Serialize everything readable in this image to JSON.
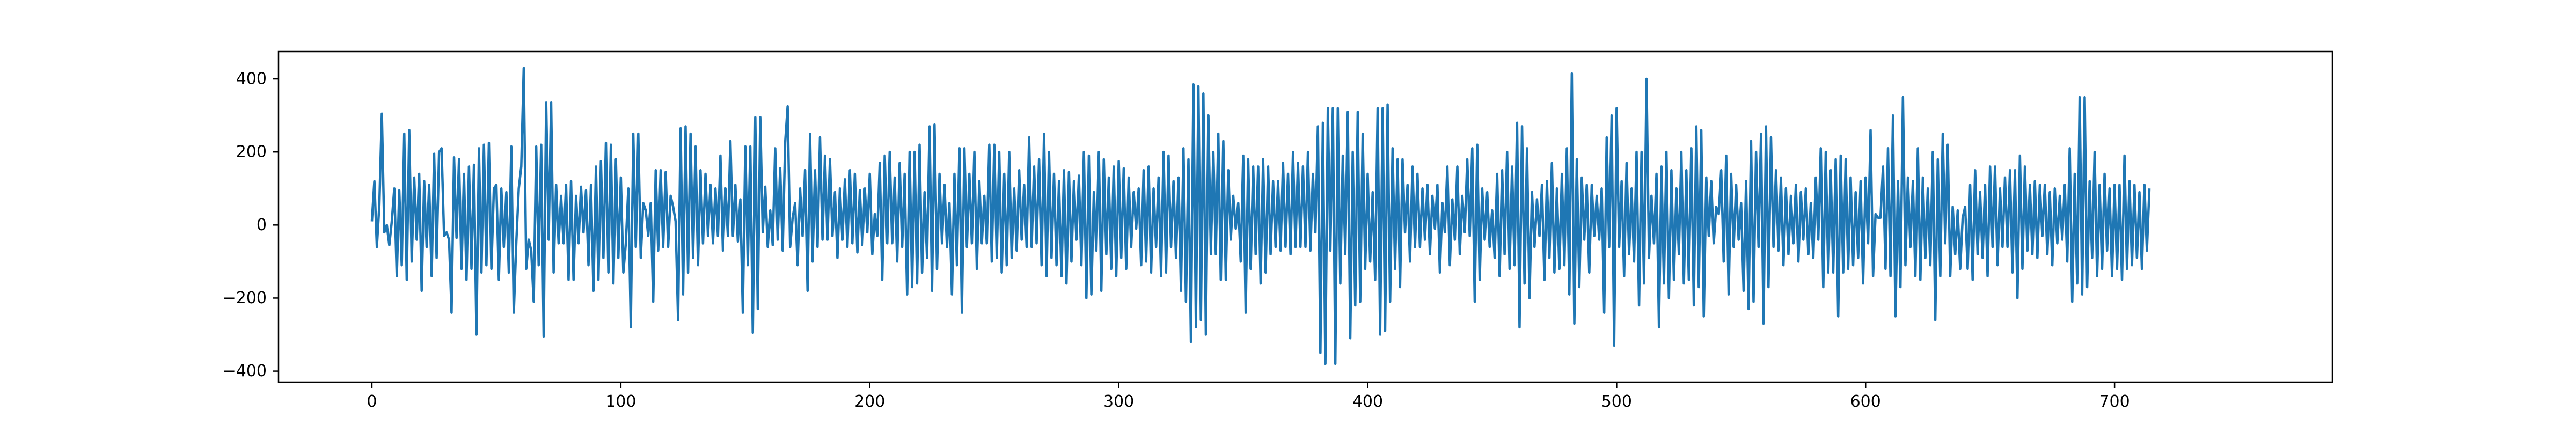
{
  "chart_data": {
    "type": "line",
    "title": "",
    "xlabel": "",
    "ylabel": "",
    "xlim": [
      -37.5,
      787.5
    ],
    "ylim": [
      -430,
      475
    ],
    "x_ticks": [
      0,
      100,
      200,
      300,
      400,
      500,
      600,
      700
    ],
    "y_ticks": [
      -400,
      -200,
      0,
      200,
      400
    ],
    "grid": false,
    "legend": "none",
    "line_color": "#1f77b4",
    "series": [
      {
        "x_start": 0,
        "x_step": 1,
        "values": [
          10,
          120,
          -60,
          55,
          305,
          -20,
          0,
          -55,
          10,
          100,
          -140,
          95,
          -110,
          250,
          -150,
          260,
          -100,
          130,
          -40,
          140,
          -180,
          120,
          -60,
          110,
          -140,
          195,
          -90,
          200,
          210,
          -30,
          -20,
          -40,
          -240,
          185,
          -35,
          180,
          -120,
          140,
          -150,
          160,
          -120,
          165,
          -300,
          210,
          -130,
          220,
          -110,
          225,
          -120,
          100,
          110,
          -150,
          100,
          -60,
          90,
          -130,
          215,
          -240,
          -50,
          100,
          160,
          430,
          -120,
          -40,
          -70,
          -210,
          215,
          -110,
          220,
          -305,
          335,
          -40,
          335,
          -130,
          110,
          -50,
          80,
          -50,
          110,
          -150,
          120,
          -150,
          80,
          -50,
          105,
          -20,
          95,
          -110,
          110,
          -180,
          160,
          -150,
          175,
          -90,
          225,
          -130,
          220,
          -160,
          180,
          -90,
          130,
          -130,
          -50,
          100,
          -280,
          250,
          -60,
          250,
          -90,
          60,
          40,
          -30,
          60,
          -210,
          150,
          -70,
          150,
          -60,
          145,
          -60,
          80,
          50,
          10,
          -260,
          265,
          -190,
          270,
          -130,
          250,
          -90,
          215,
          -110,
          150,
          -50,
          140,
          -30,
          110,
          -50,
          100,
          -30,
          190,
          -70,
          100,
          -30,
          230,
          -30,
          110,
          -45,
          70,
          -240,
          215,
          -110,
          215,
          -295,
          295,
          -230,
          295,
          -20,
          105,
          -60,
          40,
          -55,
          210,
          -40,
          155,
          -70,
          225,
          325,
          -60,
          20,
          60,
          -110,
          100,
          -30,
          150,
          -180,
          250,
          -100,
          150,
          -60,
          240,
          -40,
          190,
          -40,
          180,
          -30,
          90,
          -90,
          100,
          -40,
          125,
          -60,
          150,
          -50,
          140,
          -75,
          95,
          -55,
          100,
          -20,
          140,
          -80,
          30,
          -30,
          170,
          -150,
          190,
          -50,
          200,
          -50,
          130,
          -100,
          170,
          -60,
          140,
          -190,
          200,
          -170,
          200,
          -160,
          220,
          -130,
          90,
          -90,
          270,
          -180,
          275,
          -120,
          140,
          -50,
          110,
          -60,
          60,
          -190,
          140,
          -110,
          210,
          -240,
          210,
          -60,
          140,
          -50,
          200,
          -120,
          120,
          -50,
          80,
          -50,
          220,
          -100,
          220,
          -90,
          200,
          -130,
          140,
          -110,
          200,
          -90,
          100,
          -70,
          150,
          -40,
          110,
          -60,
          240,
          -60,
          160,
          -50,
          180,
          -110,
          250,
          -140,
          200,
          -90,
          140,
          -110,
          120,
          -140,
          150,
          -160,
          145,
          -100,
          120,
          -40,
          135,
          -110,
          200,
          -200,
          190,
          -190,
          90,
          -70,
          200,
          -180,
          180,
          -80,
          130,
          -120,
          160,
          -140,
          175,
          -90,
          155,
          -120,
          130,
          -60,
          90,
          -10,
          100,
          -110,
          150,
          -100,
          160,
          -130,
          100,
          -60,
          130,
          -140,
          200,
          -130,
          190,
          -60,
          120,
          -90,
          130,
          -180,
          210,
          -210,
          180,
          -320,
          385,
          -280,
          380,
          -260,
          360,
          -300,
          300,
          -80,
          200,
          -80,
          250,
          -150,
          230,
          -150,
          150,
          -40,
          80,
          -10,
          60,
          -100,
          190,
          -240,
          180,
          -120,
          160,
          -80,
          160,
          -160,
          180,
          -130,
          160,
          -80,
          120,
          -60,
          120,
          -70,
          170,
          -60,
          140,
          -80,
          200,
          -60,
          170,
          -60,
          160,
          -60,
          200,
          -70,
          140,
          -20,
          270,
          -350,
          280,
          -380,
          320,
          -70,
          320,
          -380,
          320,
          -160,
          190,
          -80,
          310,
          -310,
          200,
          -220,
          310,
          -210,
          250,
          -120,
          140,
          -100,
          90,
          -150,
          320,
          -300,
          320,
          -290,
          330,
          -210,
          210,
          -120,
          180,
          -170,
          180,
          -20,
          110,
          -100,
          160,
          -60,
          140,
          -60,
          100,
          -40,
          110,
          -80,
          80,
          -10,
          110,
          -130,
          60,
          -20,
          160,
          -110,
          70,
          -40,
          160,
          -80,
          80,
          -20,
          180,
          -30,
          210,
          -210,
          220,
          -150,
          100,
          -40,
          90,
          -60,
          40,
          -90,
          140,
          -140,
          150,
          -80,
          200,
          -120,
          160,
          -110,
          280,
          -280,
          270,
          -160,
          210,
          -200,
          90,
          -60,
          70,
          -30,
          110,
          -150,
          120,
          -90,
          170,
          -130,
          100,
          -120,
          140,
          -110,
          210,
          -190,
          415,
          -270,
          180,
          -170,
          130,
          -40,
          110,
          -130,
          110,
          -30,
          80,
          -40,
          100,
          -240,
          240,
          -60,
          300,
          -330,
          320,
          -60,
          120,
          -140,
          170,
          -80,
          100,
          -100,
          200,
          -220,
          200,
          -160,
          400,
          -90,
          80,
          -50,
          140,
          -280,
          160,
          -160,
          200,
          -200,
          150,
          -150,
          100,
          -80,
          200,
          -160,
          150,
          -150,
          210,
          -220,
          270,
          -170,
          260,
          -250,
          130,
          -30,
          120,
          -50,
          50,
          30,
          150,
          -100,
          190,
          -190,
          140,
          -60,
          110,
          -40,
          60,
          -180,
          120,
          -230,
          230,
          -210,
          200,
          -60,
          250,
          -270,
          270,
          -170,
          240,
          -60,
          150,
          -70,
          130,
          -110,
          100,
          -80,
          80,
          -50,
          110,
          -100,
          90,
          -40,
          100,
          -80,
          60,
          -90,
          130,
          -40,
          210,
          -170,
          200,
          -130,
          150,
          -130,
          180,
          -250,
          190,
          -130,
          180,
          -120,
          130,
          -110,
          90,
          -90,
          120,
          -160,
          130,
          -50,
          260,
          -140,
          30,
          20,
          20,
          160,
          -120,
          210,
          -140,
          300,
          -250,
          120,
          -170,
          350,
          -110,
          130,
          -60,
          120,
          -140,
          210,
          -150,
          130,
          -90,
          100,
          -110,
          200,
          -260,
          180,
          -140,
          250,
          -50,
          220,
          -140,
          50,
          -80,
          40,
          -120,
          20,
          50,
          -120,
          110,
          -150,
          150,
          -80,
          90,
          -90,
          110,
          -140,
          160,
          -60,
          160,
          -110,
          100,
          -60,
          130,
          -60,
          150,
          -130,
          150,
          -200,
          190,
          -120,
          160,
          -70,
          110,
          -80,
          120,
          -90,
          110,
          -30,
          110,
          -80,
          90,
          -110,
          100,
          -50,
          80,
          -40,
          110,
          -100,
          210,
          -210,
          140,
          -160,
          350,
          -190,
          350,
          -170,
          120,
          -90,
          200,
          -140,
          110,
          -120,
          140,
          -70,
          100,
          -140,
          110,
          -120,
          110,
          -150,
          190,
          -120,
          120,
          -110,
          110,
          -90,
          90,
          -120,
          110,
          -70,
          100
        ]
      }
    ]
  }
}
